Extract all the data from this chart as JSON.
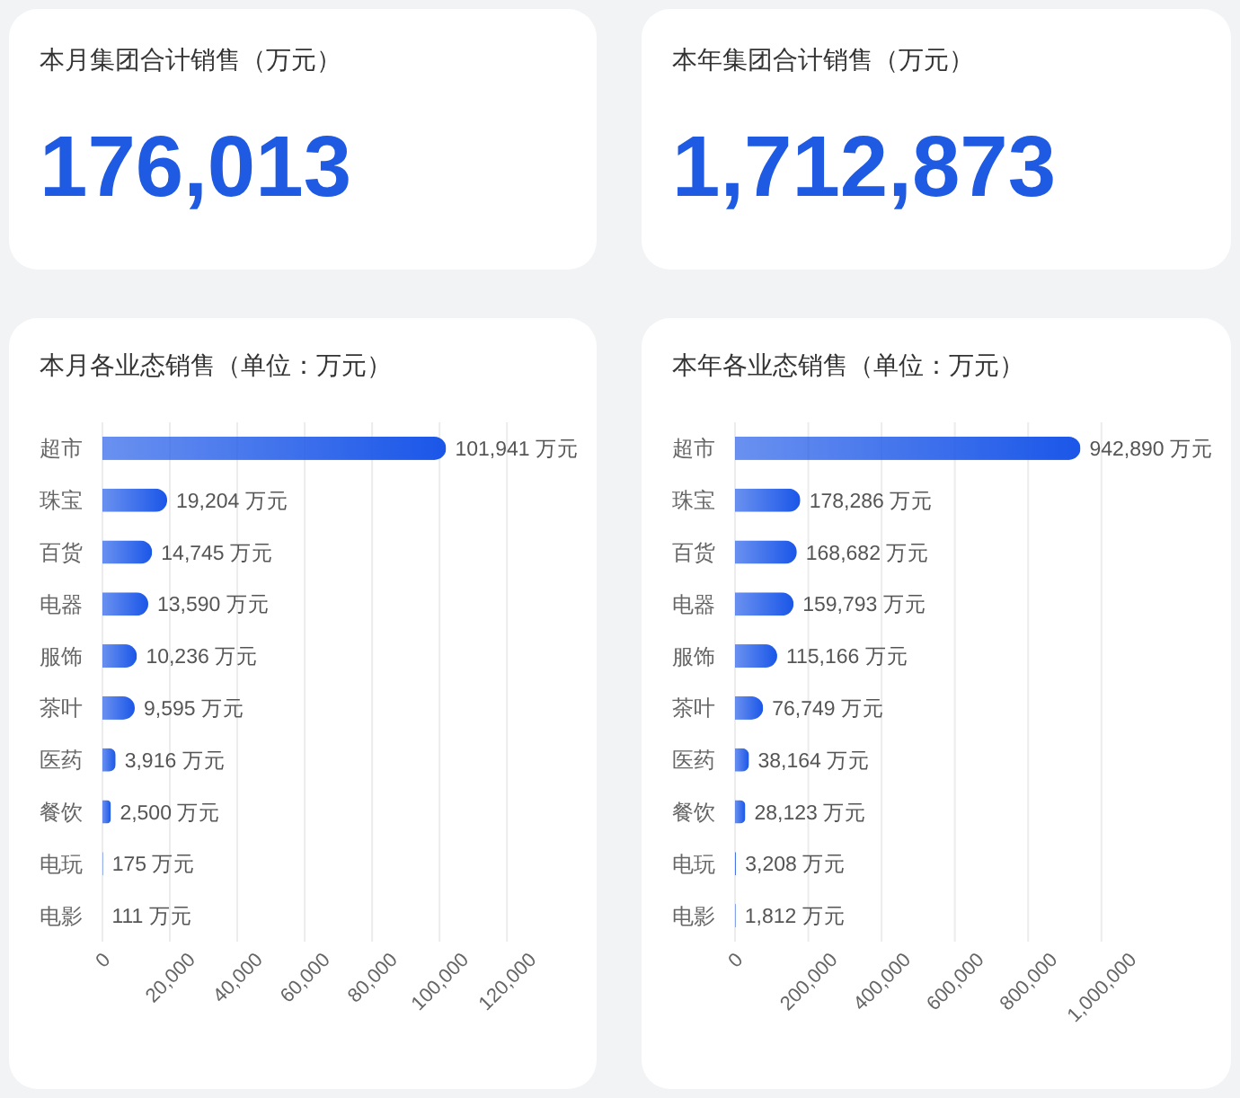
{
  "chart_data": [
    {
      "type": "other",
      "title": "本月集团合计销售（万元）",
      "annotations": [
        "176,013"
      ],
      "color": "#1f5ae3"
    },
    {
      "type": "other",
      "title": "本年集团合计销售（万元）",
      "annotations": [
        "1,712,873"
      ],
      "color": "#1f5ae3"
    },
    {
      "type": "bar",
      "orientation": "horizontal",
      "title": "本月各业态销售（单位：万元）",
      "categories": [
        "超市",
        "珠宝",
        "百货",
        "电器",
        "服饰",
        "茶叶",
        "医药",
        "餐饮",
        "电玩",
        "电影"
      ],
      "values": [
        101941,
        19204,
        14745,
        13590,
        10236,
        9595,
        3916,
        2500,
        175,
        111
      ],
      "value_labels": [
        "101,941 万元",
        "19,204 万元",
        "14,745 万元",
        "13,590 万元",
        "10,236 万元",
        "9,595 万元",
        "3,916 万元",
        "2,500 万元",
        "175 万元",
        "111 万元"
      ],
      "color": "#1a56e8",
      "xlim": [
        0,
        120000
      ],
      "xticks": [
        0,
        {
          "value": 20000,
          "label": "20,000"
        },
        {
          "value": 40000,
          "label": "40,000"
        },
        {
          "value": 60000,
          "label": "60,000"
        },
        {
          "value": 80000,
          "label": "80,000"
        },
        {
          "value": 100000,
          "label": "100,000"
        },
        {
          "value": 120000,
          "label": "120,000"
        }
      ],
      "grid": "x"
    },
    {
      "type": "bar",
      "orientation": "horizontal",
      "title": "本年各业态销售（单位：万元）",
      "categories": [
        "超市",
        "珠宝",
        "百货",
        "电器",
        "服饰",
        "茶叶",
        "医药",
        "餐饮",
        "电玩",
        "电影"
      ],
      "values": [
        942890,
        178286,
        168682,
        159793,
        115166,
        76749,
        38164,
        28123,
        3208,
        1812
      ],
      "value_labels": [
        "942,890 万元",
        "178,286 万元",
        "168,682 万元",
        "159,793 万元",
        "115,166 万元",
        "76,749 万元",
        "38,164 万元",
        "28,123 万元",
        "3,208 万元",
        "1,812 万元"
      ],
      "color": "#1a56e8",
      "xlim": [
        0,
        1000000
      ],
      "xticks": [
        0,
        {
          "value": 200000,
          "label": "200,000"
        },
        {
          "value": 400000,
          "label": "400,000"
        },
        {
          "value": 600000,
          "label": "600,000"
        },
        {
          "value": 800000,
          "label": "800,000"
        },
        {
          "value": 1000000,
          "label": "1,000,000"
        }
      ],
      "grid": "x"
    }
  ]
}
